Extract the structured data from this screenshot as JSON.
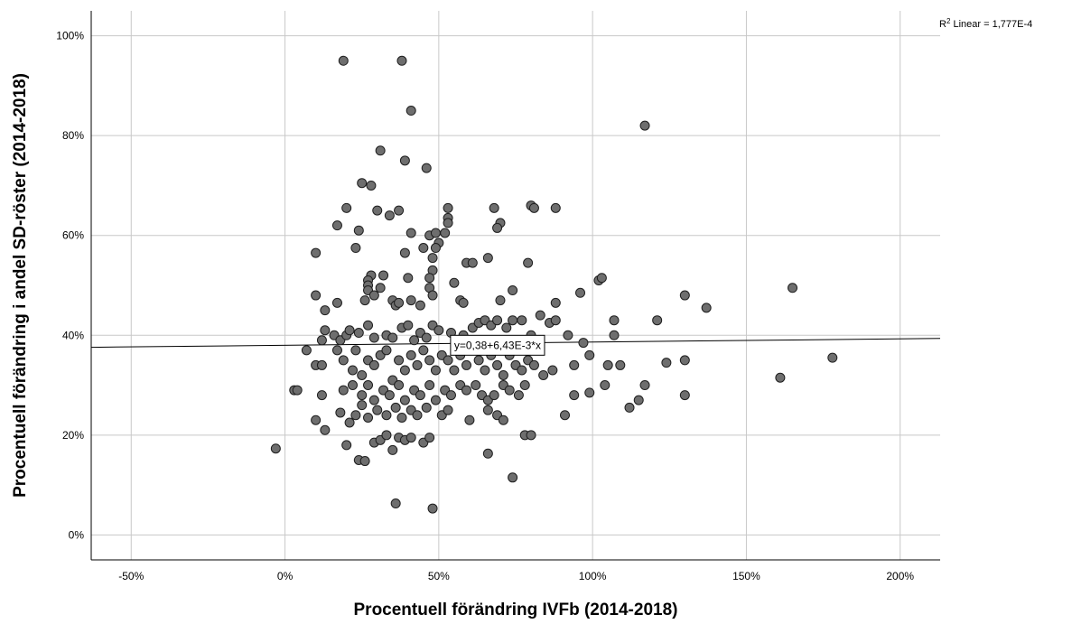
{
  "chart_data": {
    "type": "scatter",
    "title": "",
    "xlabel": "Procentuell förändring IVFb (2014-2018)",
    "ylabel": "Procentuell förändring i andel SD-röster (2014-2018)",
    "xlim": [
      -0.63,
      2.13
    ],
    "ylim": [
      -0.05,
      1.05
    ],
    "x_ticks": [
      -0.5,
      0,
      0.5,
      1.0,
      1.5,
      2.0
    ],
    "x_tick_labels": [
      "-50%",
      "0%",
      "50%",
      "100%",
      "150%",
      "200%"
    ],
    "y_ticks": [
      0,
      0.2,
      0.4,
      0.6,
      0.8,
      1.0
    ],
    "y_tick_labels": [
      "0%",
      "20%",
      "40%",
      "60%",
      "80%",
      "100%"
    ],
    "grid": true,
    "marker_color": "#6e6e6e",
    "fit_line": {
      "type": "linear",
      "intercept": 0.38,
      "slope": 0.00643,
      "label": "y=0,38+6,43E-3*x",
      "label_anchor": [
        0.55,
        0.38
      ]
    },
    "r_squared_label": {
      "prefix": "R",
      "sup": "2",
      "text": " Linear = 1,777E-4"
    },
    "points": [
      [
        0.19,
        0.95
      ],
      [
        0.38,
        0.95
      ],
      [
        0.41,
        0.85
      ],
      [
        1.17,
        0.82
      ],
      [
        0.31,
        0.77
      ],
      [
        0.39,
        0.75
      ],
      [
        0.46,
        0.735
      ],
      [
        0.25,
        0.705
      ],
      [
        0.28,
        0.7
      ],
      [
        0.2,
        0.655
      ],
      [
        0.3,
        0.65
      ],
      [
        0.37,
        0.65
      ],
      [
        0.34,
        0.64
      ],
      [
        0.53,
        0.655
      ],
      [
        0.53,
        0.635
      ],
      [
        0.53,
        0.625
      ],
      [
        0.68,
        0.655
      ],
      [
        0.8,
        0.66
      ],
      [
        0.81,
        0.655
      ],
      [
        0.88,
        0.655
      ],
      [
        0.7,
        0.625
      ],
      [
        0.69,
        0.615
      ],
      [
        0.17,
        0.62
      ],
      [
        0.24,
        0.61
      ],
      [
        0.41,
        0.605
      ],
      [
        0.47,
        0.6
      ],
      [
        0.49,
        0.605
      ],
      [
        0.52,
        0.605
      ],
      [
        0.5,
        0.585
      ],
      [
        0.1,
        0.565
      ],
      [
        0.23,
        0.575
      ],
      [
        0.45,
        0.575
      ],
      [
        0.49,
        0.575
      ],
      [
        0.39,
        0.565
      ],
      [
        0.66,
        0.555
      ],
      [
        0.48,
        0.555
      ],
      [
        0.59,
        0.545
      ],
      [
        0.61,
        0.545
      ],
      [
        0.79,
        0.545
      ],
      [
        0.28,
        0.52
      ],
      [
        0.32,
        0.52
      ],
      [
        0.27,
        0.51
      ],
      [
        0.27,
        0.5
      ],
      [
        0.48,
        0.53
      ],
      [
        0.47,
        0.515
      ],
      [
        0.55,
        0.505
      ],
      [
        0.4,
        0.515
      ],
      [
        1.02,
        0.51
      ],
      [
        1.03,
        0.515
      ],
      [
        1.65,
        0.495
      ],
      [
        0.31,
        0.495
      ],
      [
        0.27,
        0.49
      ],
      [
        0.29,
        0.48
      ],
      [
        0.47,
        0.495
      ],
      [
        0.48,
        0.48
      ],
      [
        0.74,
        0.49
      ],
      [
        0.1,
        0.48
      ],
      [
        0.26,
        0.47
      ],
      [
        0.35,
        0.47
      ],
      [
        0.41,
        0.47
      ],
      [
        0.44,
        0.46
      ],
      [
        0.57,
        0.47
      ],
      [
        0.58,
        0.465
      ],
      [
        0.7,
        0.47
      ],
      [
        0.88,
        0.465
      ],
      [
        0.96,
        0.485
      ],
      [
        1.3,
        0.48
      ],
      [
        0.17,
        0.465
      ],
      [
        0.13,
        0.45
      ],
      [
        0.36,
        0.46
      ],
      [
        0.37,
        0.465
      ],
      [
        1.37,
        0.455
      ],
      [
        0.12,
        0.39
      ],
      [
        0.13,
        0.41
      ],
      [
        0.16,
        0.4
      ],
      [
        0.18,
        0.39
      ],
      [
        0.2,
        0.4
      ],
      [
        0.21,
        0.41
      ],
      [
        0.24,
        0.405
      ],
      [
        0.27,
        0.42
      ],
      [
        0.29,
        0.395
      ],
      [
        0.33,
        0.4
      ],
      [
        0.35,
        0.395
      ],
      [
        0.38,
        0.415
      ],
      [
        0.4,
        0.42
      ],
      [
        0.42,
        0.39
      ],
      [
        0.44,
        0.405
      ],
      [
        0.46,
        0.395
      ],
      [
        0.48,
        0.42
      ],
      [
        0.5,
        0.41
      ],
      [
        0.54,
        0.405
      ],
      [
        0.56,
        0.39
      ],
      [
        0.58,
        0.4
      ],
      [
        0.61,
        0.415
      ],
      [
        0.63,
        0.425
      ],
      [
        0.65,
        0.43
      ],
      [
        0.67,
        0.42
      ],
      [
        0.69,
        0.43
      ],
      [
        0.72,
        0.415
      ],
      [
        0.74,
        0.43
      ],
      [
        0.77,
        0.43
      ],
      [
        0.8,
        0.4
      ],
      [
        0.83,
        0.44
      ],
      [
        0.86,
        0.425
      ],
      [
        0.88,
        0.43
      ],
      [
        0.92,
        0.4
      ],
      [
        0.97,
        0.385
      ],
      [
        1.07,
        0.43
      ],
      [
        1.07,
        0.4
      ],
      [
        1.21,
        0.43
      ],
      [
        0.07,
        0.37
      ],
      [
        0.1,
        0.34
      ],
      [
        0.12,
        0.34
      ],
      [
        0.17,
        0.37
      ],
      [
        0.19,
        0.35
      ],
      [
        0.22,
        0.33
      ],
      [
        0.23,
        0.37
      ],
      [
        0.25,
        0.32
      ],
      [
        0.27,
        0.35
      ],
      [
        0.29,
        0.34
      ],
      [
        0.31,
        0.36
      ],
      [
        0.33,
        0.37
      ],
      [
        0.35,
        0.31
      ],
      [
        0.37,
        0.35
      ],
      [
        0.39,
        0.33
      ],
      [
        0.41,
        0.36
      ],
      [
        0.43,
        0.34
      ],
      [
        0.45,
        0.37
      ],
      [
        0.47,
        0.35
      ],
      [
        0.49,
        0.33
      ],
      [
        0.51,
        0.36
      ],
      [
        0.53,
        0.35
      ],
      [
        0.55,
        0.33
      ],
      [
        0.57,
        0.36
      ],
      [
        0.59,
        0.34
      ],
      [
        0.61,
        0.37
      ],
      [
        0.63,
        0.35
      ],
      [
        0.65,
        0.33
      ],
      [
        0.67,
        0.36
      ],
      [
        0.69,
        0.34
      ],
      [
        0.71,
        0.32
      ],
      [
        0.73,
        0.36
      ],
      [
        0.75,
        0.34
      ],
      [
        0.77,
        0.33
      ],
      [
        0.79,
        0.35
      ],
      [
        0.81,
        0.34
      ],
      [
        0.84,
        0.32
      ],
      [
        0.87,
        0.33
      ],
      [
        0.94,
        0.34
      ],
      [
        0.99,
        0.36
      ],
      [
        1.05,
        0.34
      ],
      [
        1.09,
        0.34
      ],
      [
        1.24,
        0.345
      ],
      [
        1.3,
        0.35
      ],
      [
        1.61,
        0.315
      ],
      [
        1.78,
        0.355
      ],
      [
        0.03,
        0.29
      ],
      [
        0.04,
        0.29
      ],
      [
        0.12,
        0.28
      ],
      [
        0.19,
        0.29
      ],
      [
        0.22,
        0.3
      ],
      [
        0.25,
        0.28
      ],
      [
        0.27,
        0.3
      ],
      [
        0.29,
        0.27
      ],
      [
        0.32,
        0.29
      ],
      [
        0.34,
        0.28
      ],
      [
        0.37,
        0.3
      ],
      [
        0.39,
        0.27
      ],
      [
        0.42,
        0.29
      ],
      [
        0.44,
        0.28
      ],
      [
        0.47,
        0.3
      ],
      [
        0.49,
        0.27
      ],
      [
        0.52,
        0.29
      ],
      [
        0.54,
        0.28
      ],
      [
        0.57,
        0.3
      ],
      [
        0.59,
        0.29
      ],
      [
        0.62,
        0.3
      ],
      [
        0.64,
        0.28
      ],
      [
        0.66,
        0.27
      ],
      [
        0.68,
        0.28
      ],
      [
        0.71,
        0.3
      ],
      [
        0.73,
        0.29
      ],
      [
        0.76,
        0.28
      ],
      [
        0.78,
        0.3
      ],
      [
        0.94,
        0.28
      ],
      [
        0.99,
        0.285
      ],
      [
        1.04,
        0.3
      ],
      [
        1.12,
        0.255
      ],
      [
        1.15,
        0.27
      ],
      [
        1.17,
        0.3
      ],
      [
        1.3,
        0.28
      ],
      [
        0.1,
        0.23
      ],
      [
        0.13,
        0.21
      ],
      [
        0.18,
        0.245
      ],
      [
        0.21,
        0.225
      ],
      [
        0.23,
        0.24
      ],
      [
        0.25,
        0.26
      ],
      [
        0.27,
        0.235
      ],
      [
        0.3,
        0.25
      ],
      [
        0.33,
        0.24
      ],
      [
        0.36,
        0.255
      ],
      [
        0.38,
        0.235
      ],
      [
        0.41,
        0.25
      ],
      [
        0.43,
        0.24
      ],
      [
        0.46,
        0.255
      ],
      [
        0.51,
        0.24
      ],
      [
        0.53,
        0.25
      ],
      [
        0.6,
        0.23
      ],
      [
        0.66,
        0.25
      ],
      [
        0.69,
        0.24
      ],
      [
        0.71,
        0.23
      ],
      [
        0.91,
        0.24
      ],
      [
        0.78,
        0.2
      ],
      [
        0.8,
        0.2
      ],
      [
        0.66,
        0.163
      ],
      [
        -0.03,
        0.173
      ],
      [
        0.2,
        0.18
      ],
      [
        0.24,
        0.15
      ],
      [
        0.26,
        0.148
      ],
      [
        0.29,
        0.185
      ],
      [
        0.31,
        0.19
      ],
      [
        0.33,
        0.2
      ],
      [
        0.35,
        0.17
      ],
      [
        0.37,
        0.195
      ],
      [
        0.39,
        0.19
      ],
      [
        0.41,
        0.195
      ],
      [
        0.45,
        0.185
      ],
      [
        0.47,
        0.195
      ],
      [
        0.74,
        0.115
      ],
      [
        0.36,
        0.063
      ],
      [
        0.48,
        0.053
      ]
    ]
  }
}
